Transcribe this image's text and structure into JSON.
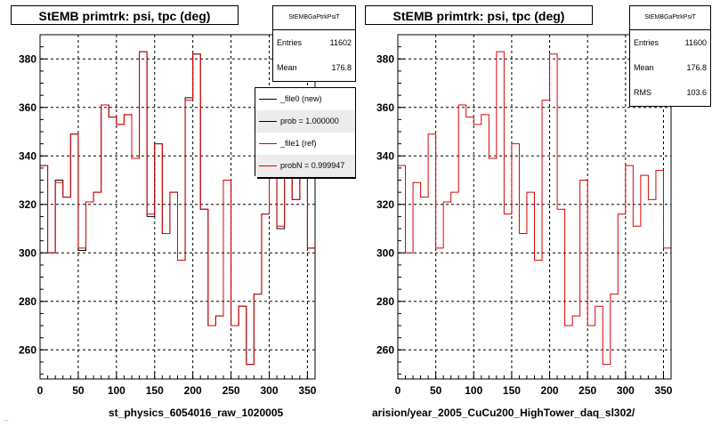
{
  "colors": {
    "ref": "#dd0000",
    "new": "#000000",
    "grid": "#000000",
    "axis": "#000000"
  },
  "panels": [
    {
      "title": "StEMB primtrk: psi, tpc (deg)",
      "stats": {
        "name": "StEMBGaPtrkPsiT",
        "rows": [
          {
            "label": "Entries",
            "value": "11602"
          },
          {
            "label": "Mean",
            "value": "176.8"
          }
        ]
      },
      "legend": [
        {
          "label": "_file0 (new)",
          "color": "#000000",
          "shaded": false
        },
        {
          "label": "prob = 1.000000",
          "color": "#000000",
          "shaded": true
        },
        {
          "label": "_file1 (ref)",
          "color": "#dd0000",
          "shaded": false
        },
        {
          "label": "probN = 0.999947",
          "color": "#dd0000",
          "shaded": true
        }
      ],
      "xfooter": "st_physics_6054016_raw_1020005",
      "stamp": "..."
    },
    {
      "title": "StEMB primtrk: psi, tpc (deg)",
      "stats": {
        "name": "StEMBGaPtrkPsiT",
        "rows": [
          {
            "label": "Entries",
            "value": "11600"
          },
          {
            "label": "Mean",
            "value": "176.8"
          },
          {
            "label": "RMS",
            "value": "103.6"
          }
        ]
      },
      "xfooter": "arision/year_2005_CuCu200_HighTower_daq_sl302/"
    }
  ],
  "chart_data": [
    {
      "type": "line",
      "step": true,
      "title": "StEMB primtrk: psi, tpc (deg)",
      "xlim": [
        0,
        360
      ],
      "ylim": [
        248,
        390
      ],
      "xticks": [
        0,
        50,
        100,
        150,
        200,
        250,
        300,
        350
      ],
      "yticks": [
        260,
        280,
        300,
        320,
        340,
        360,
        380
      ],
      "grid": true,
      "legend_position": "top-right",
      "bin_width": 10,
      "bin_edges_start": 0,
      "series": [
        {
          "name": "_file0 (new)",
          "color": "#000000",
          "values": [
            336,
            300,
            330,
            323,
            349,
            301,
            321,
            325,
            361,
            356,
            353,
            357,
            339,
            383,
            315,
            345,
            308,
            325,
            297,
            364,
            382,
            318,
            270,
            274,
            330,
            270,
            278,
            254,
            283,
            316,
            336,
            310,
            332,
            322,
            334,
            302
          ]
        },
        {
          "name": "_file1 (ref)",
          "color": "#dd0000",
          "values": [
            336,
            300,
            329,
            323,
            349,
            302,
            321,
            325,
            361,
            356,
            353,
            357,
            339,
            383,
            316,
            345,
            308,
            325,
            297,
            363,
            382,
            318,
            270,
            274,
            330,
            270,
            278,
            254,
            283,
            316,
            336,
            311,
            332,
            322,
            334,
            302
          ]
        }
      ]
    },
    {
      "type": "line",
      "step": true,
      "title": "StEMB primtrk: psi, tpc (deg)",
      "xlim": [
        0,
        360
      ],
      "ylim": [
        248,
        390
      ],
      "xticks": [
        0,
        50,
        100,
        150,
        200,
        250,
        300,
        350
      ],
      "yticks": [
        260,
        280,
        300,
        320,
        340,
        360,
        380
      ],
      "grid": true,
      "bin_width": 10,
      "bin_edges_start": 0,
      "series": [
        {
          "name": "",
          "color": "#dd0000",
          "values": [
            336,
            300,
            329,
            323,
            349,
            302,
            321,
            325,
            361,
            356,
            353,
            357,
            339,
            383,
            316,
            345,
            308,
            325,
            297,
            363,
            382,
            318,
            270,
            274,
            330,
            270,
            278,
            254,
            283,
            316,
            336,
            311,
            332,
            322,
            334,
            302
          ]
        }
      ]
    }
  ]
}
